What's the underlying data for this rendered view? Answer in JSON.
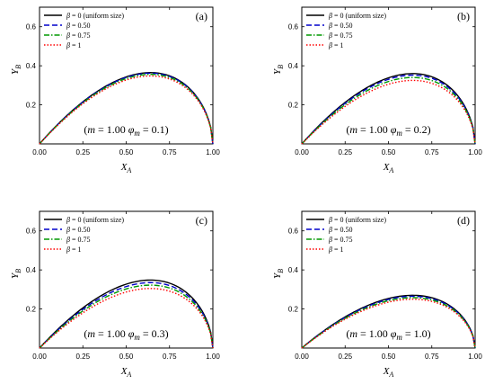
{
  "styles": {
    "colors": {
      "beta0": "#000000",
      "beta050": "#0000cc",
      "beta075": "#009900",
      "beta1": "#ff0000"
    },
    "dashes": {
      "beta0": "",
      "beta050": "6,3",
      "beta075": "6,2,1.5,2",
      "beta1": "1.5,2"
    }
  },
  "chart_data": [
    {
      "type": "line",
      "panel_label": "(a)",
      "xlabel": "X",
      "xlabel_sub": "A",
      "ylabel": "Y",
      "ylabel_sub": "B",
      "xlim": [
        0,
        1
      ],
      "ylim": [
        0,
        0.7
      ],
      "xticks": [
        0.0,
        0.25,
        0.5,
        0.75,
        1.0
      ],
      "xtick_labels": [
        "0.00",
        "0.25",
        "0.50",
        "0.75",
        "1.00"
      ],
      "yticks": [
        0.2,
        0.4,
        0.6
      ],
      "ytick_labels": [
        "0.2",
        "0.4",
        "0.6"
      ],
      "annotation": {
        "open": "(",
        "m": "m",
        "eq1": " = 1.00 ",
        "phi": "φ",
        "phi_sub": "m",
        "eq2": " = 0.1)"
      },
      "legend_position": "top-left",
      "series": [
        {
          "name": "β = 0 (uniform size)",
          "beta_label": "β",
          "rest": " = 0 (uniform size)",
          "style": "beta0",
          "peak_x": 0.64,
          "peak_y": 0.365
        },
        {
          "name": "β = 0.50",
          "beta_label": "β",
          "rest": " = 0.50",
          "style": "beta050",
          "peak_x": 0.64,
          "peak_y": 0.362
        },
        {
          "name": "β = 0.75",
          "beta_label": "β",
          "rest": " = 0.75",
          "style": "beta075",
          "peak_x": 0.64,
          "peak_y": 0.356
        },
        {
          "name": "β = 1",
          "beta_label": "β",
          "rest": " = 1",
          "style": "beta1",
          "peak_x": 0.64,
          "peak_y": 0.348
        }
      ]
    },
    {
      "type": "line",
      "panel_label": "(b)",
      "xlabel": "X",
      "xlabel_sub": "A",
      "ylabel": "Y",
      "ylabel_sub": "B",
      "xlim": [
        0,
        1
      ],
      "ylim": [
        0,
        0.7
      ],
      "xticks": [
        0.0,
        0.25,
        0.5,
        0.75,
        1.0
      ],
      "xtick_labels": [
        "0.00",
        "0.25",
        "0.50",
        "0.75",
        "1.00"
      ],
      "yticks": [
        0.2,
        0.4,
        0.6
      ],
      "ytick_labels": [
        "0.2",
        "0.4",
        "0.6"
      ],
      "annotation": {
        "open": "(",
        "m": "m",
        "eq1": " = 1.00 ",
        "phi": "φ",
        "phi_sub": "m",
        "eq2": " = 0.2)"
      },
      "legend_position": "top-left",
      "series": [
        {
          "name": "β = 0 (uniform size)",
          "beta_label": "β",
          "rest": " = 0 (uniform size)",
          "style": "beta0",
          "peak_x": 0.64,
          "peak_y": 0.36
        },
        {
          "name": "β = 0.50",
          "beta_label": "β",
          "rest": " = 0.50",
          "style": "beta050",
          "peak_x": 0.64,
          "peak_y": 0.352
        },
        {
          "name": "β = 0.75",
          "beta_label": "β",
          "rest": " = 0.75",
          "style": "beta075",
          "peak_x": 0.64,
          "peak_y": 0.34
        },
        {
          "name": "β = 1",
          "beta_label": "β",
          "rest": " = 1",
          "style": "beta1",
          "peak_x": 0.64,
          "peak_y": 0.325
        }
      ]
    },
    {
      "type": "line",
      "panel_label": "(c)",
      "xlabel": "X",
      "xlabel_sub": "A",
      "ylabel": "Y",
      "ylabel_sub": "B",
      "xlim": [
        0,
        1
      ],
      "ylim": [
        0,
        0.7
      ],
      "xticks": [
        0.0,
        0.25,
        0.5,
        0.75,
        1.0
      ],
      "xtick_labels": [
        "0.00",
        "0.25",
        "0.50",
        "0.75",
        "1.00"
      ],
      "yticks": [
        0.2,
        0.4,
        0.6
      ],
      "ytick_labels": [
        "0.2",
        "0.4",
        "0.6"
      ],
      "annotation": {
        "open": "(",
        "m": "m",
        "eq1": " = 1.00 ",
        "phi": "φ",
        "phi_sub": "m",
        "eq2": " = 0.3)"
      },
      "legend_position": "top-left",
      "series": [
        {
          "name": "β = 0 (uniform size)",
          "beta_label": "β",
          "rest": " = 0 (uniform size)",
          "style": "beta0",
          "peak_x": 0.64,
          "peak_y": 0.348
        },
        {
          "name": "β = 0.50",
          "beta_label": "β",
          "rest": " = 0.50",
          "style": "beta050",
          "peak_x": 0.64,
          "peak_y": 0.335
        },
        {
          "name": "β = 0.75",
          "beta_label": "β",
          "rest": " = 0.75",
          "style": "beta075",
          "peak_x": 0.64,
          "peak_y": 0.322
        },
        {
          "name": "β = 1",
          "beta_label": "β",
          "rest": " = 1",
          "style": "beta1",
          "peak_x": 0.64,
          "peak_y": 0.305
        }
      ]
    },
    {
      "type": "line",
      "panel_label": "(d)",
      "xlabel": "X",
      "xlabel_sub": "A",
      "ylabel": "Y",
      "ylabel_sub": "B",
      "xlim": [
        0,
        1
      ],
      "ylim": [
        0,
        0.7
      ],
      "xticks": [
        0.0,
        0.25,
        0.5,
        0.75,
        1.0
      ],
      "xtick_labels": [
        "0.00",
        "0.25",
        "0.50",
        "0.75",
        "1.00"
      ],
      "yticks": [
        0.2,
        0.4,
        0.6
      ],
      "ytick_labels": [
        "0.2",
        "0.4",
        "0.6"
      ],
      "annotation": {
        "open": "(",
        "m": "m",
        "eq1": " = 1.00 ",
        "phi": "φ",
        "phi_sub": "m",
        "eq2": " = 1.0)"
      },
      "legend_position": "top-left",
      "series": [
        {
          "name": "β = 0 (uniform size)",
          "beta_label": "β",
          "rest": " = 0 (uniform size)",
          "style": "beta0",
          "peak_x": 0.64,
          "peak_y": 0.27
        },
        {
          "name": "β = 0.50",
          "beta_label": "β",
          "rest": " = 0.50",
          "style": "beta050",
          "peak_x": 0.64,
          "peak_y": 0.265
        },
        {
          "name": "β = 0.75",
          "beta_label": "β",
          "rest": " = 0.75",
          "style": "beta075",
          "peak_x": 0.64,
          "peak_y": 0.258
        },
        {
          "name": "β = 1",
          "beta_label": "β",
          "rest": " = 1",
          "style": "beta1",
          "peak_x": 0.64,
          "peak_y": 0.25
        }
      ]
    }
  ]
}
